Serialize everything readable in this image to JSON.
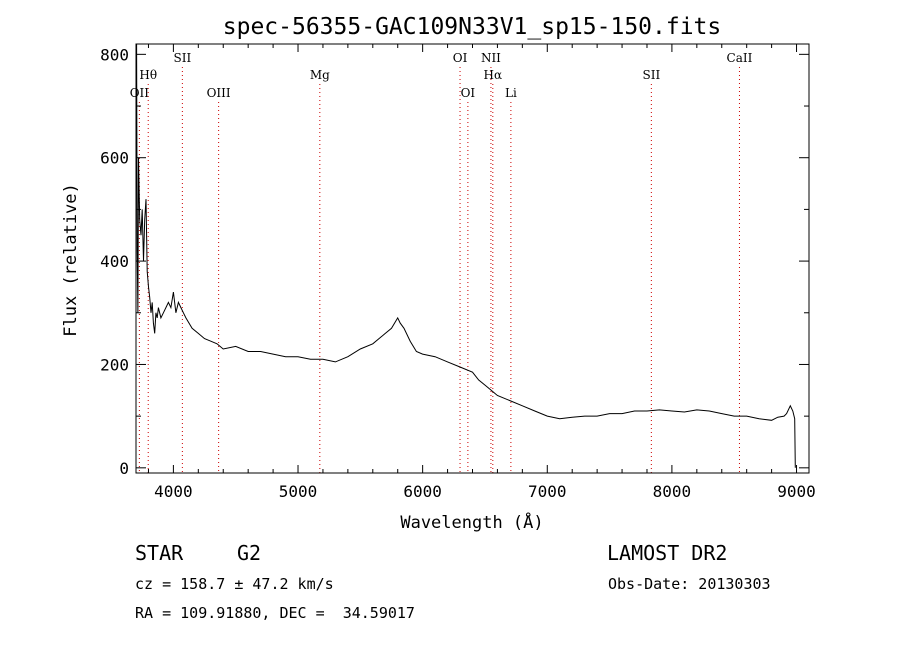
{
  "chart_data": {
    "type": "line",
    "title": "spec-56355-GAC109N33V1_sp15-150.fits",
    "xlabel": "Wavelength (Å)",
    "ylabel": "Flux (relative)",
    "xlim": [
      3700,
      9100
    ],
    "ylim": [
      -10,
      820
    ],
    "xticks": [
      4000,
      5000,
      6000,
      7000,
      8000,
      9000
    ],
    "yticks": [
      0,
      200,
      400,
      600,
      800
    ],
    "grid": false,
    "series": [
      {
        "x": [
          3700,
          3705,
          3710,
          3715,
          3720,
          3730,
          3740,
          3750,
          3760,
          3770,
          3780,
          3790,
          3800,
          3810,
          3820,
          3830,
          3840,
          3850,
          3860,
          3870,
          3880,
          3900,
          3920,
          3940,
          3960,
          3980,
          4000,
          4020,
          4040,
          4060,
          4080,
          4100,
          4150,
          4200,
          4250,
          4300,
          4350,
          4400,
          4500,
          4600,
          4700,
          4800,
          4900,
          5000,
          5100,
          5200,
          5300,
          5400,
          5500,
          5600,
          5700,
          5750,
          5800,
          5820,
          5850,
          5900,
          5950,
          6000,
          6100,
          6200,
          6300,
          6400,
          6450,
          6500,
          6550,
          6600,
          6700,
          6800,
          6900,
          7000,
          7100,
          7200,
          7300,
          7400,
          7500,
          7600,
          7700,
          7800,
          7900,
          8000,
          8100,
          8200,
          8300,
          8400,
          8500,
          8600,
          8700,
          8800,
          8850,
          8900,
          8920,
          8950,
          8970,
          8985,
          8990
        ],
        "y": [
          750,
          820,
          420,
          300,
          600,
          480,
          450,
          500,
          400,
          480,
          520,
          380,
          350,
          330,
          300,
          320,
          280,
          260,
          300,
          290,
          310,
          290,
          300,
          310,
          320,
          310,
          340,
          300,
          320,
          310,
          300,
          290,
          270,
          260,
          250,
          245,
          240,
          230,
          235,
          225,
          225,
          220,
          215,
          215,
          210,
          210,
          205,
          215,
          230,
          240,
          260,
          270,
          290,
          280,
          270,
          245,
          225,
          220,
          215,
          205,
          195,
          185,
          170,
          160,
          150,
          140,
          130,
          120,
          110,
          100,
          95,
          98,
          100,
          100,
          105,
          105,
          110,
          110,
          112,
          110,
          108,
          112,
          110,
          105,
          100,
          100,
          95,
          92,
          98,
          100,
          105,
          120,
          110,
          95,
          0
        ]
      }
    ],
    "lines": [
      {
        "name": "OII",
        "x": 3727,
        "row": 3
      },
      {
        "name": "Hθ",
        "x": 3798,
        "row": 2
      },
      {
        "name": "SII",
        "x": 4072,
        "row": 1
      },
      {
        "name": "OIII",
        "x": 4363,
        "row": 3
      },
      {
        "name": "Mg",
        "x": 5175,
        "row": 2
      },
      {
        "name": "OI",
        "x": 6300,
        "row": 1
      },
      {
        "name": "OI",
        "x": 6363,
        "row": 3
      },
      {
        "name": "NII",
        "x": 6548,
        "row": 1
      },
      {
        "name": "Hα",
        "x": 6563,
        "row": 2
      },
      {
        "name": "Li",
        "x": 6708,
        "row": 3
      },
      {
        "name": "SII",
        "x": 7835,
        "row": 2
      },
      {
        "name": "CaII",
        "x": 8542,
        "row": 1
      }
    ]
  },
  "info": {
    "object_type": "STAR",
    "subclass": "G2",
    "survey": "LAMOST DR2",
    "cz_line": "cz = 158.7 ± 47.2 km/s",
    "obsdate_line": "Obs-Date: 20130303",
    "coord_line": "RA = 109.91880, DEC =  34.59017"
  }
}
